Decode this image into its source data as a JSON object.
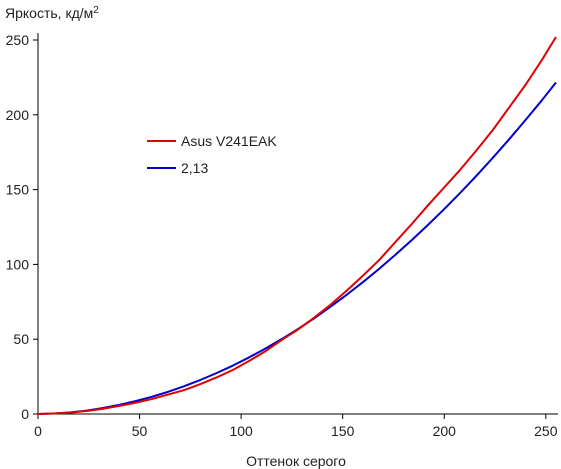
{
  "chart_data": {
    "type": "line",
    "xlabel": "Оттенок серого",
    "ylabel_text": "Яркость, кд/м",
    "ylabel_sup": "2",
    "xlim": [
      0,
      255
    ],
    "ylim": [
      0,
      260
    ],
    "xticks": [
      0,
      50,
      100,
      150,
      200,
      250
    ],
    "yticks": [
      0,
      50,
      100,
      150,
      200,
      250
    ],
    "grid": false,
    "legend_position": "upper-left-inside",
    "series": [
      {
        "name": "Asus V241EAK",
        "color": "#e00000",
        "x": [
          0,
          8,
          16,
          24,
          32,
          40,
          48,
          56,
          64,
          72,
          80,
          88,
          96,
          104,
          112,
          120,
          128,
          136,
          144,
          152,
          160,
          168,
          176,
          184,
          192,
          200,
          208,
          216,
          224,
          232,
          240,
          248,
          255
        ],
        "y": [
          0,
          0.3,
          1.0,
          2.0,
          3.5,
          5.4,
          7.5,
          10.0,
          13.0,
          16.0,
          20.0,
          24.5,
          29.5,
          35.5,
          42.0,
          49.5,
          56.5,
          64.5,
          73.0,
          82.5,
          92.5,
          103.0,
          115.0,
          127.0,
          139.5,
          151.5,
          163.5,
          176.5,
          190.0,
          205.0,
          220.0,
          236.5,
          252.0
        ]
      },
      {
        "name": "2,13",
        "color": "#0000d0",
        "x": [
          0,
          8,
          16,
          24,
          32,
          40,
          48,
          56,
          64,
          72,
          80,
          88,
          96,
          104,
          112,
          120,
          128,
          136,
          144,
          152,
          160,
          168,
          176,
          184,
          192,
          200,
          208,
          216,
          224,
          232,
          240,
          248,
          255
        ],
        "y": [
          0,
          0.3,
          1.1,
          2.3,
          4.0,
          6.1,
          8.6,
          11.5,
          14.8,
          18.6,
          22.8,
          27.4,
          32.4,
          37.9,
          43.8,
          50.1,
          56.8,
          64.0,
          71.7,
          79.7,
          88.2,
          97.1,
          106.5,
          116.2,
          126.4,
          137.0,
          148.0,
          159.5,
          171.4,
          183.7,
          196.5,
          209.6,
          221.6
        ]
      }
    ]
  }
}
